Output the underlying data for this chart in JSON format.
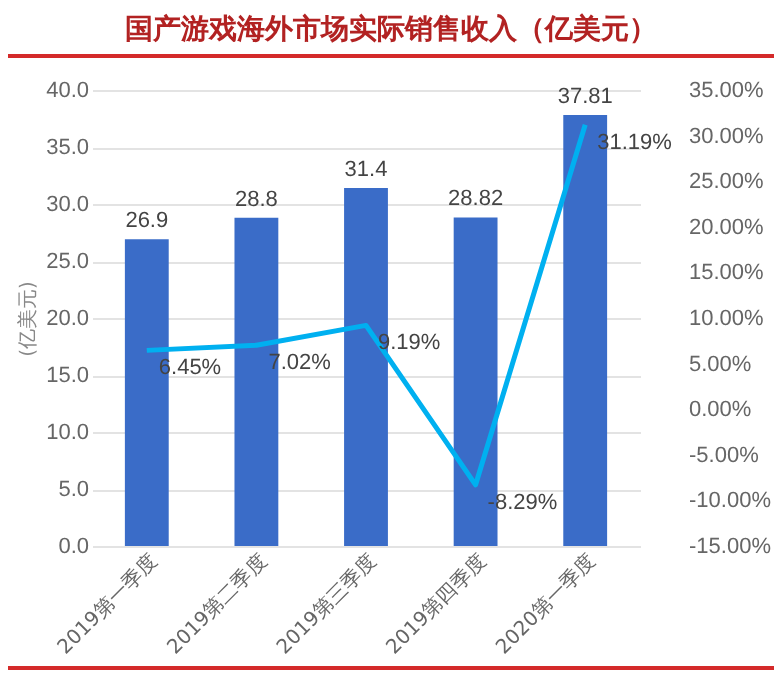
{
  "chart_data": {
    "type": "bar",
    "title": "国产游戏海外市场实际销售收入（亿美元）",
    "ylabel": "(亿美元)",
    "categories": [
      "2019第一季度",
      "2019第二季度",
      "2019第三季度",
      "2019第四季度",
      "2020第一季度"
    ],
    "series": [
      {
        "color": "#3a6cc8",
        "values": [
          26.9,
          28.8,
          31.4,
          28.82,
          37.81
        ],
        "value_labels": [
          "26.9",
          "28.8",
          "31.4",
          "28.82",
          "37.81"
        ]
      },
      {
        "type": "line",
        "axis": "y2",
        "color": "#00b0f0",
        "values": [
          6.45,
          7.02,
          9.19,
          -8.29,
          31.19
        ],
        "value_labels": [
          "6.45%",
          "7.02%",
          "9.19%",
          "-8.29%",
          "31.19%"
        ]
      }
    ],
    "ylim": [
      0,
      40
    ],
    "yticks": [
      {
        "value": 0,
        "label": "0.0"
      },
      {
        "value": 5,
        "label": "5.0"
      },
      {
        "value": 10,
        "label": "10.0"
      },
      {
        "value": 15,
        "label": "15.0"
      },
      {
        "value": 20,
        "label": "20.0"
      },
      {
        "value": 25,
        "label": "25.0"
      },
      {
        "value": 30,
        "label": "30.0"
      },
      {
        "value": 35,
        "label": "35.0"
      },
      {
        "value": 40,
        "label": "40.0"
      }
    ],
    "y2lim": [
      -15,
      35
    ],
    "y2ticks": [
      {
        "value": -15,
        "label": "-15.00%"
      },
      {
        "value": -10,
        "label": "-10.00%"
      },
      {
        "value": -5,
        "label": "-5.00%"
      },
      {
        "value": 0,
        "label": "0.00%"
      },
      {
        "value": 5,
        "label": "5.00%"
      },
      {
        "value": 10,
        "label": "10.00%"
      },
      {
        "value": 15,
        "label": "15.00%"
      },
      {
        "value": 20,
        "label": "20.00%"
      },
      {
        "value": 25,
        "label": "25.00%"
      },
      {
        "value": 30,
        "label": "30.00%"
      },
      {
        "value": 35,
        "label": "35.00%"
      }
    ],
    "grid": "y",
    "marker": "none"
  }
}
